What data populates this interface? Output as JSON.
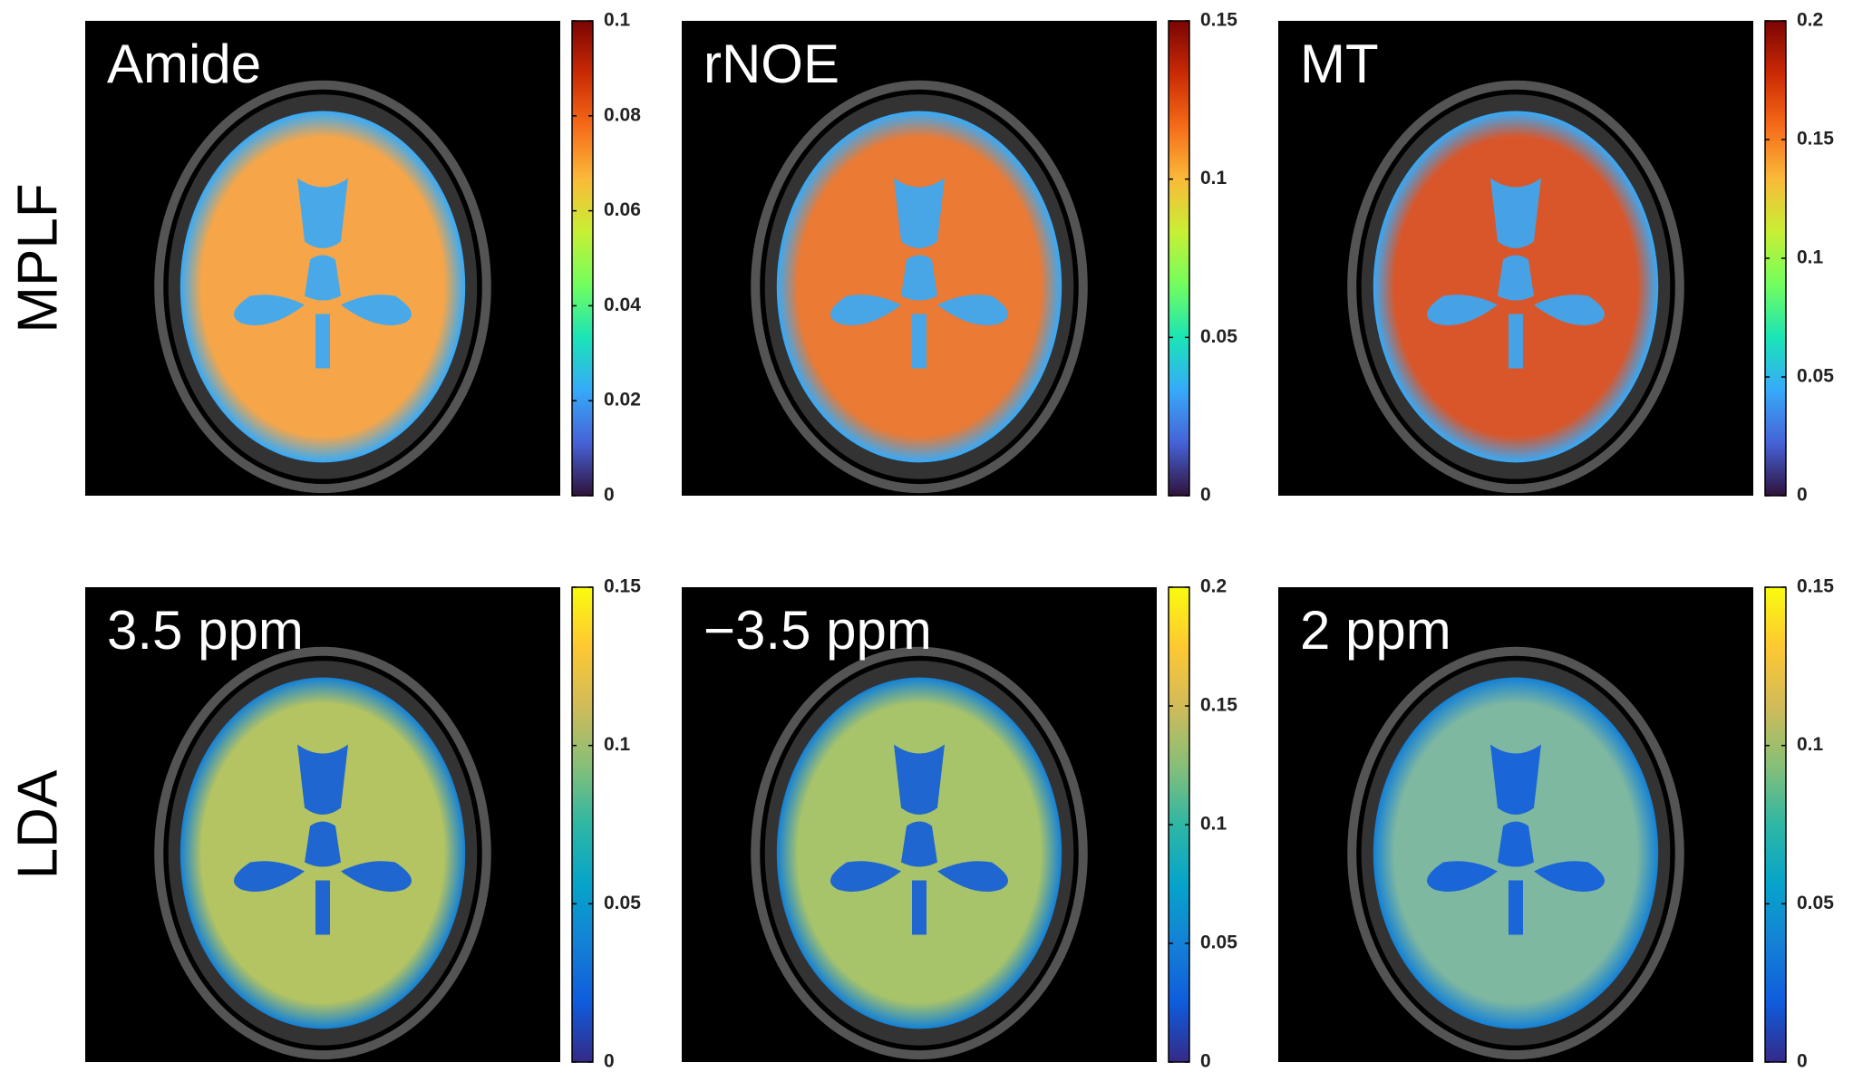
{
  "figure": {
    "rows": [
      {
        "label": "MPLF",
        "colormap": "turbo",
        "panels": [
          {
            "title": "Amide",
            "clim": [
              0,
              0.1
            ],
            "ticks": [
              0,
              0.02,
              0.04,
              0.06,
              0.08,
              0.1
            ]
          },
          {
            "title": "rNOE",
            "clim": [
              0,
              0.15
            ],
            "ticks": [
              0,
              0.05,
              0.1,
              0.15
            ]
          },
          {
            "title": "MT",
            "clim": [
              0,
              0.2
            ],
            "ticks": [
              0,
              0.05,
              0.1,
              0.15,
              0.2
            ]
          }
        ]
      },
      {
        "label": "LDA",
        "colormap": "parula",
        "panels": [
          {
            "title": "3.5 ppm",
            "clim": [
              0,
              0.15
            ],
            "ticks": [
              0,
              0.05,
              0.1,
              0.15
            ]
          },
          {
            "title": "−3.5 ppm",
            "clim": [
              0,
              0.2
            ],
            "ticks": [
              0,
              0.05,
              0.1,
              0.15,
              0.2
            ]
          },
          {
            "title": "2 ppm",
            "clim": [
              0,
              0.15
            ],
            "ticks": [
              0,
              0.05,
              0.1,
              0.15
            ]
          }
        ]
      }
    ]
  }
}
